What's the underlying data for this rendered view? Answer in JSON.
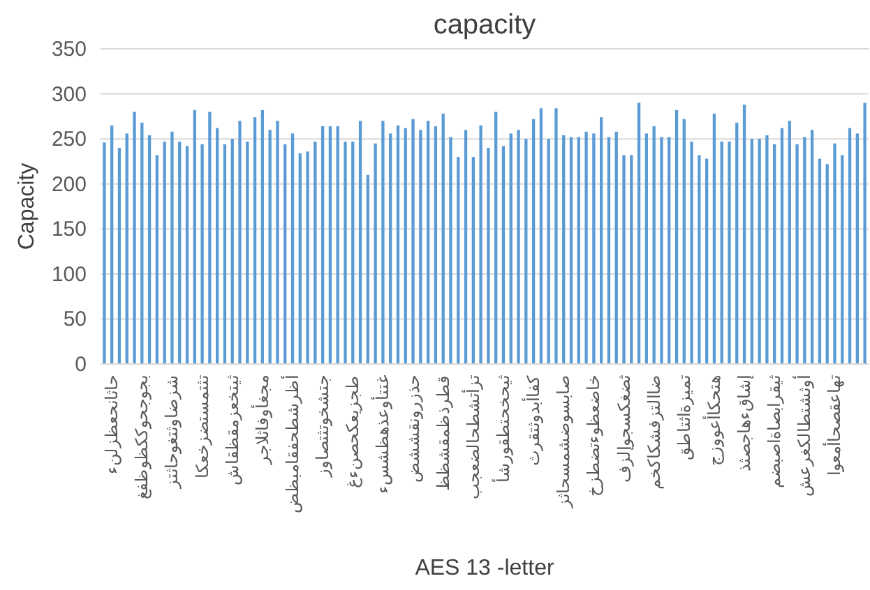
{
  "chart_data": {
    "type": "bar",
    "title": "capacity",
    "xlabel": "AES 13 -letter",
    "ylabel": "Capacity",
    "categories": [
      null,
      "حاثانحعظزلنء",
      null,
      null,
      null,
      "بجوجحوككظوظفغ",
      null,
      null,
      null,
      "شزضاوثتغوحاثتز",
      null,
      null,
      null,
      "تثتمستضزخعكا",
      null,
      null,
      null,
      "ثيتخعزمقظقاش",
      null,
      null,
      null,
      "مجغأوفاثلاجر",
      null,
      null,
      null,
      "أظرشطحفقامبظض",
      null,
      null,
      null,
      "جتشخوتثتصاوز",
      null,
      null,
      null,
      "طجزيعكحصنءغ",
      null,
      null,
      null,
      "غتتأوعذهظشسء",
      null,
      null,
      null,
      "حذزرونقششض",
      null,
      null,
      null,
      "قطرذظمقشظظ",
      null,
      null,
      null,
      "تزأتشطحالضعجب",
      null,
      null,
      null,
      "ثيحخحتطقورشأ",
      null,
      null,
      null,
      "كفاأبدوثتقرث",
      null,
      null,
      null,
      "صابسوضشمسحاثز",
      null,
      null,
      null,
      "خاضعظوءتضطزخ",
      null,
      null,
      null,
      "ثضغكسجوإلزف",
      null,
      null,
      null,
      "ضاالتزفشكاكخم",
      null,
      null,
      null,
      "تميزةاثتاطق",
      null,
      null,
      null,
      "هتحكاأعووزج",
      null,
      null,
      null,
      "إشاقءهاجصثذ",
      null,
      null,
      null,
      "ثيقرابصاةاصبضم",
      null,
      null,
      null,
      "أوثشتطالكغرعش",
      null,
      null,
      null,
      "تهاعقصحاأمعوا",
      null,
      null,
      null,
      null
    ],
    "values": [
      246,
      265,
      240,
      256,
      280,
      268,
      254,
      232,
      247,
      258,
      247,
      242,
      282,
      244,
      280,
      262,
      244,
      250,
      270,
      247,
      274,
      282,
      260,
      270,
      244,
      256,
      234,
      236,
      247,
      264,
      264,
      264,
      247,
      247,
      270,
      210,
      245,
      270,
      256,
      265,
      262,
      272,
      260,
      270,
      264,
      278,
      252,
      230,
      260,
      230,
      265,
      240,
      280,
      242,
      256,
      260,
      250,
      272,
      284,
      250,
      284,
      254,
      252,
      252,
      258,
      256,
      274,
      252,
      258,
      232,
      232,
      290,
      256,
      264,
      252,
      252,
      282,
      272,
      247,
      232,
      228,
      278,
      247,
      247,
      268,
      288,
      250,
      250,
      254,
      244,
      262,
      270,
      244,
      252,
      260,
      228,
      222,
      245,
      232,
      262,
      256,
      290
    ],
    "color": "#5b9bd5",
    "ylim": [
      0,
      350
    ],
    "yticks": [
      0,
      50,
      100,
      150,
      200,
      250,
      300,
      350
    ],
    "grid": "y"
  }
}
